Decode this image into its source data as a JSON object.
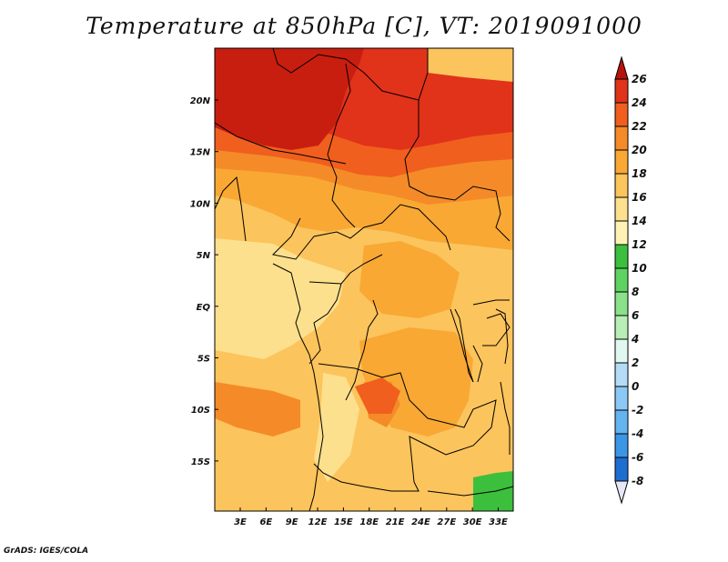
{
  "title": "Temperature at 850hPa [C], VT: 2019091000",
  "credit": "GrADS: IGES/COLA",
  "axes": {
    "lat_labels": [
      "20N",
      "15N",
      "10N",
      "5N",
      "EQ",
      "5S",
      "10S",
      "15S"
    ],
    "lon_labels": [
      "3E",
      "6E",
      "9E",
      "12E",
      "15E",
      "18E",
      "21E",
      "24E",
      "27E",
      "30E",
      "33E"
    ]
  },
  "colorbar": {
    "labels": [
      "26",
      "24",
      "22",
      "20",
      "18",
      "16",
      "14",
      "12",
      "10",
      "8",
      "6",
      "4",
      "2",
      "0",
      "-2",
      "-4",
      "-6",
      "-8"
    ],
    "colors": [
      "#c81e0f",
      "#e1321a",
      "#f05f1e",
      "#f48b28",
      "#f9a834",
      "#fcc45c",
      "#fde08d",
      "#fef3b4",
      "#3cbf3c",
      "#5fd35f",
      "#8ae18a",
      "#b7efb7",
      "#e1f8f0",
      "#b4dcf6",
      "#8cc8f5",
      "#64b4f0",
      "#3c96e6",
      "#1e6ed2",
      "#0f4bb4",
      "#08288a",
      "#000a5a"
    ],
    "top_arrow_color": "#b4140a",
    "bottom_arrow_color": "#e6e6f5"
  },
  "map_colors": {
    "c26": "#c81e0f",
    "c24": "#e1321a",
    "c22": "#f05f1e",
    "c20": "#f48b28",
    "c18": "#f9a834",
    "c16": "#fcc45c",
    "c14": "#fde08d",
    "c12": "#3cbf3c",
    "border": "#000000"
  }
}
